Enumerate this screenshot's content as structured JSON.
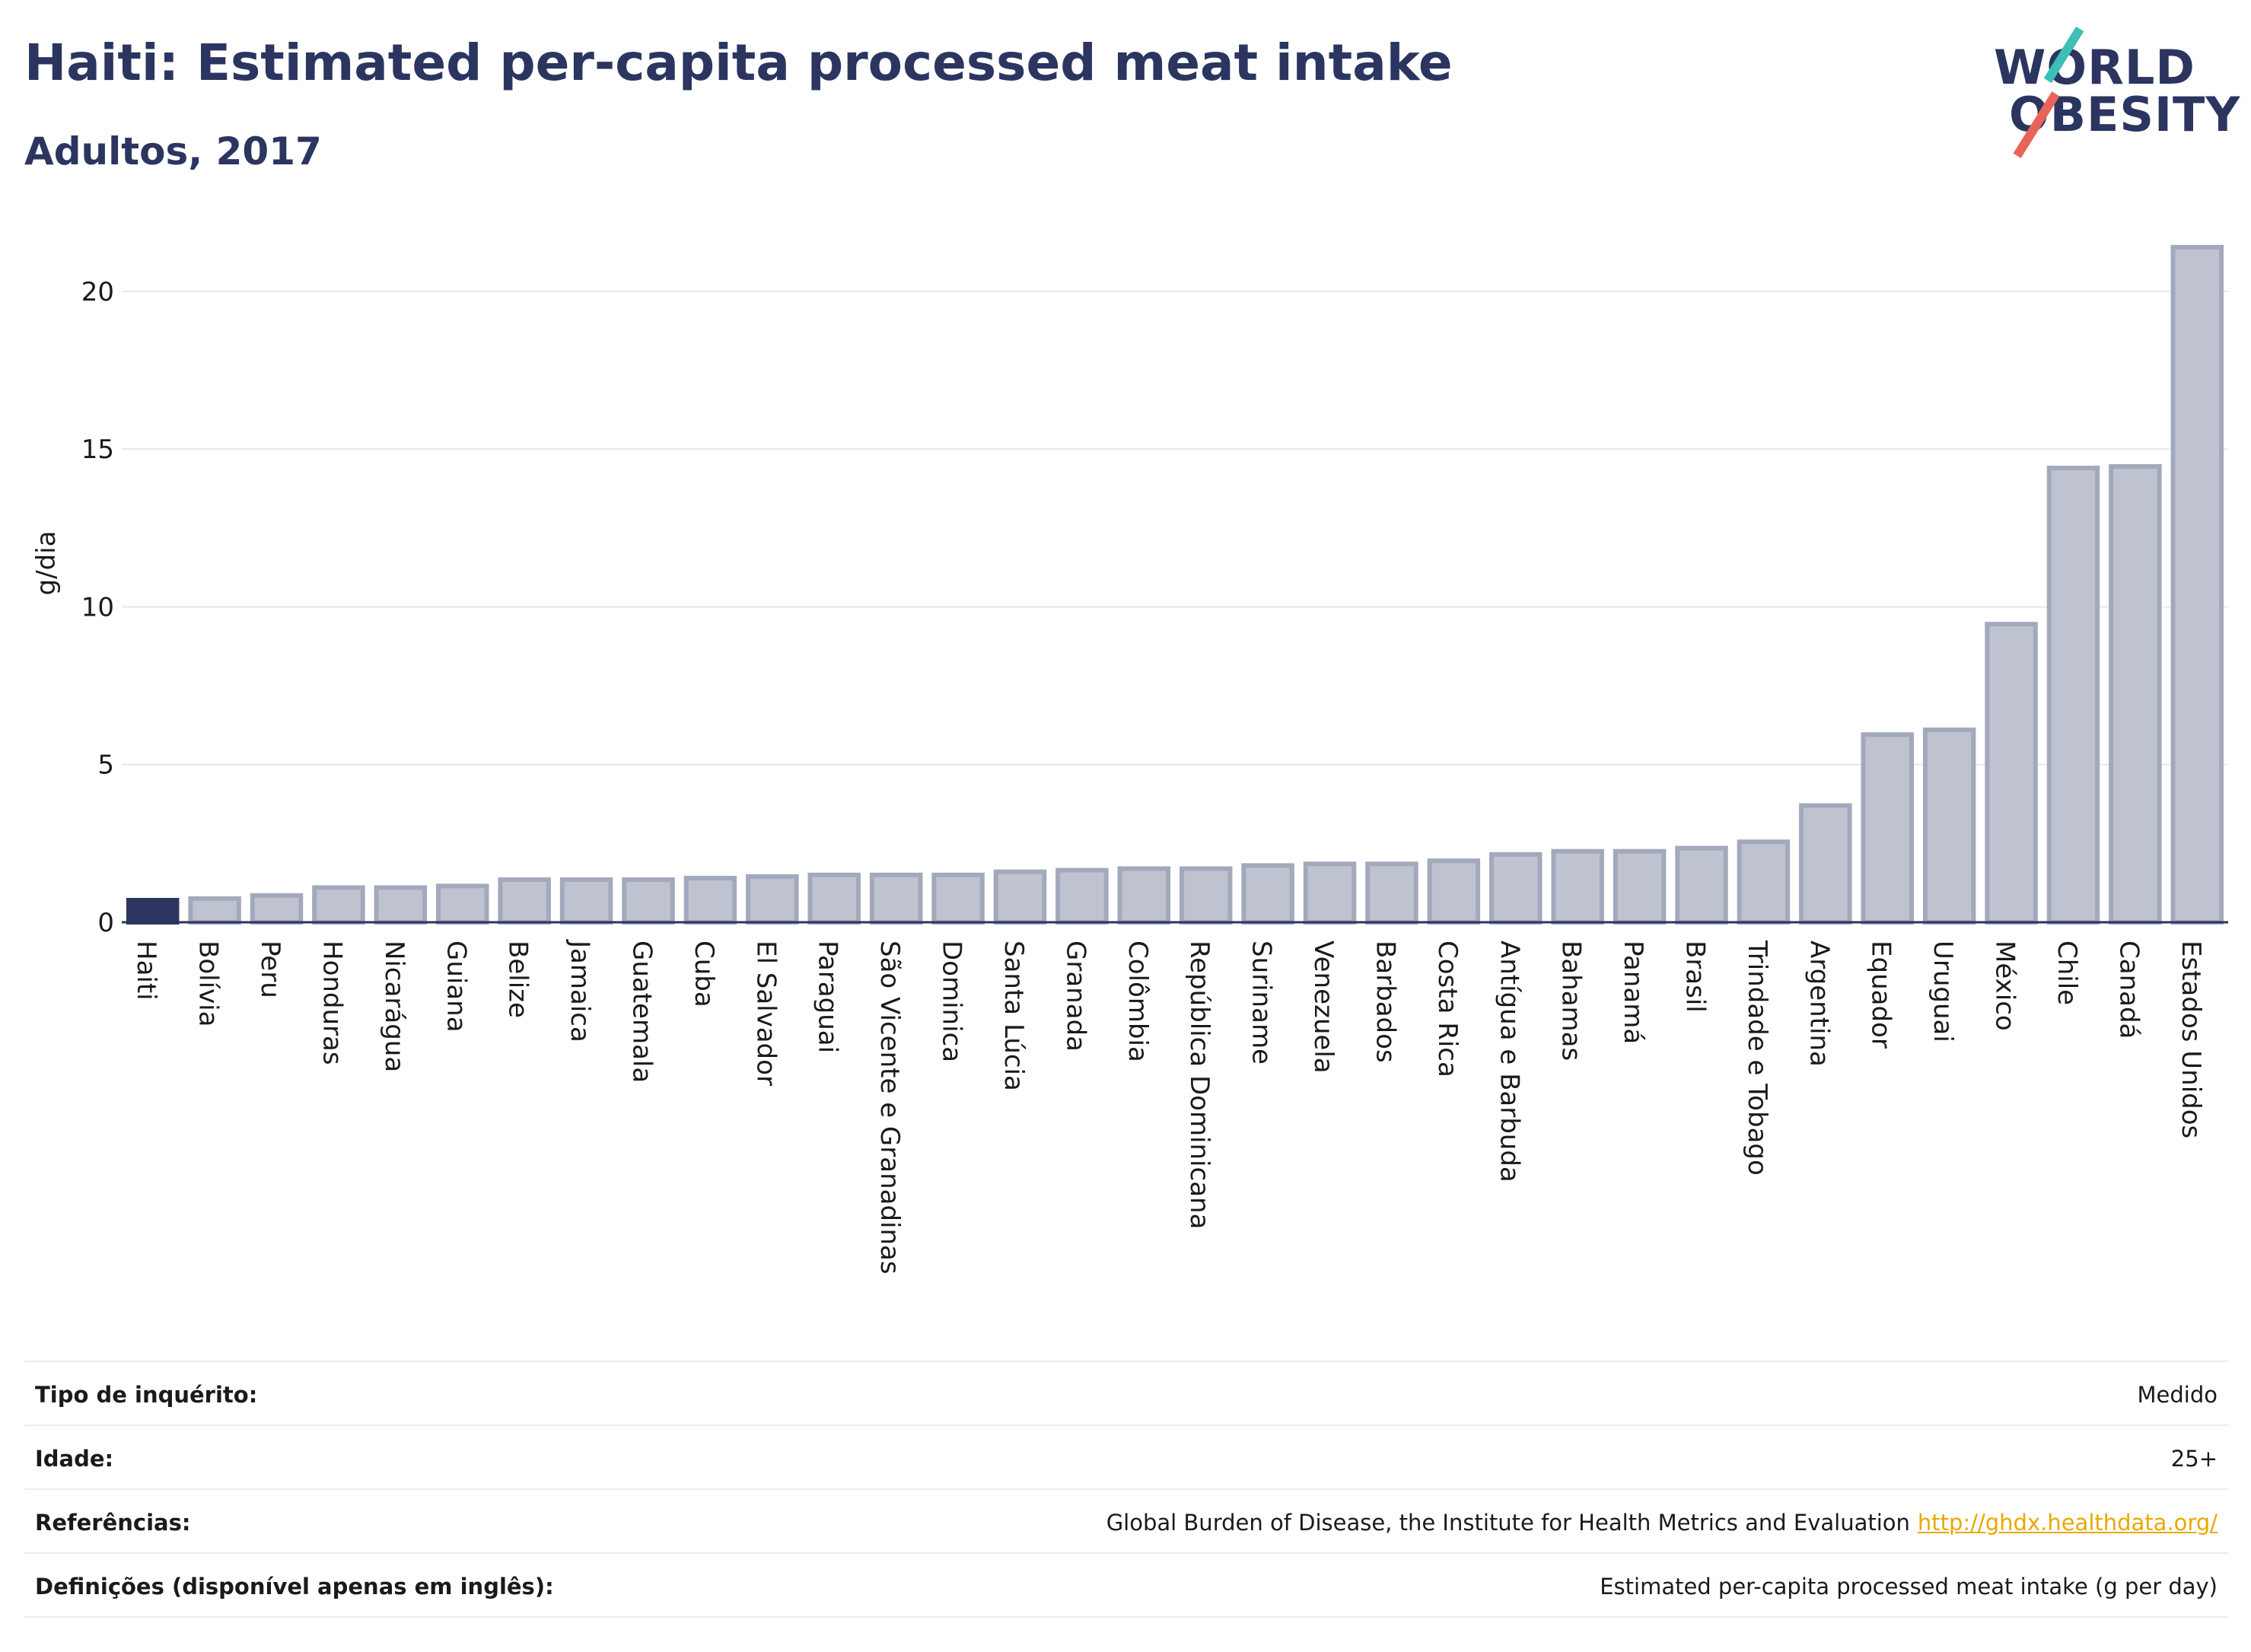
{
  "header": {
    "title": "Haiti: Estimated per-capita processed meat intake",
    "subtitle": "Adultos, 2017"
  },
  "logo": {
    "line1": "WORLD",
    "line2": "OBESITY"
  },
  "colors": {
    "highlight": "#2b3560",
    "bar": "#bfc3cf",
    "bar_edge": "#a3a9bc"
  },
  "chart_data": {
    "type": "bar",
    "ylabel": "g/dia",
    "xlabel": "",
    "ylim": [
      0,
      22
    ],
    "yticks": [
      0,
      5,
      10,
      15,
      20
    ],
    "grid": true,
    "highlight": "Haiti",
    "categories": [
      "Haiti",
      "Bolívia",
      "Peru",
      "Honduras",
      "Nicarágua",
      "Guiana",
      "Belize",
      "Jamaica",
      "Guatemala",
      "Cuba",
      "El Salvador",
      "Paraguai",
      "São Vicente e Granadinas",
      "Dominica",
      "Santa Lúcia",
      "Granada",
      "Colômbia",
      "República Dominicana",
      "Suriname",
      "Venezuela",
      "Barbados",
      "Costa Rica",
      "Antígua e Barbuda",
      "Bahamas",
      "Panamá",
      "Brasil",
      "Trindade e Tobago",
      "Argentina",
      "Equador",
      "Uruguai",
      "México",
      "Chile",
      "Canadá",
      "Estados Unidos"
    ],
    "values": [
      0.7,
      0.75,
      0.85,
      1.1,
      1.1,
      1.15,
      1.35,
      1.35,
      1.35,
      1.4,
      1.45,
      1.5,
      1.5,
      1.5,
      1.6,
      1.65,
      1.7,
      1.7,
      1.8,
      1.85,
      1.85,
      1.95,
      2.15,
      2.25,
      2.25,
      2.35,
      2.55,
      3.7,
      5.95,
      6.1,
      9.45,
      14.4,
      14.45,
      21.4
    ]
  },
  "info": [
    {
      "label": "Tipo de inquérito:",
      "value": "Medido"
    },
    {
      "label": "Idade:",
      "value": "25+"
    },
    {
      "label": "Referências:",
      "value": "Global Burden of Disease, the Institute for Health Metrics and Evaluation",
      "link": "http://ghdx.healthdata.org/"
    },
    {
      "label": "Definições (disponível apenas em inglês):",
      "value": "Estimated per-capita processed meat intake (g per day)"
    }
  ]
}
